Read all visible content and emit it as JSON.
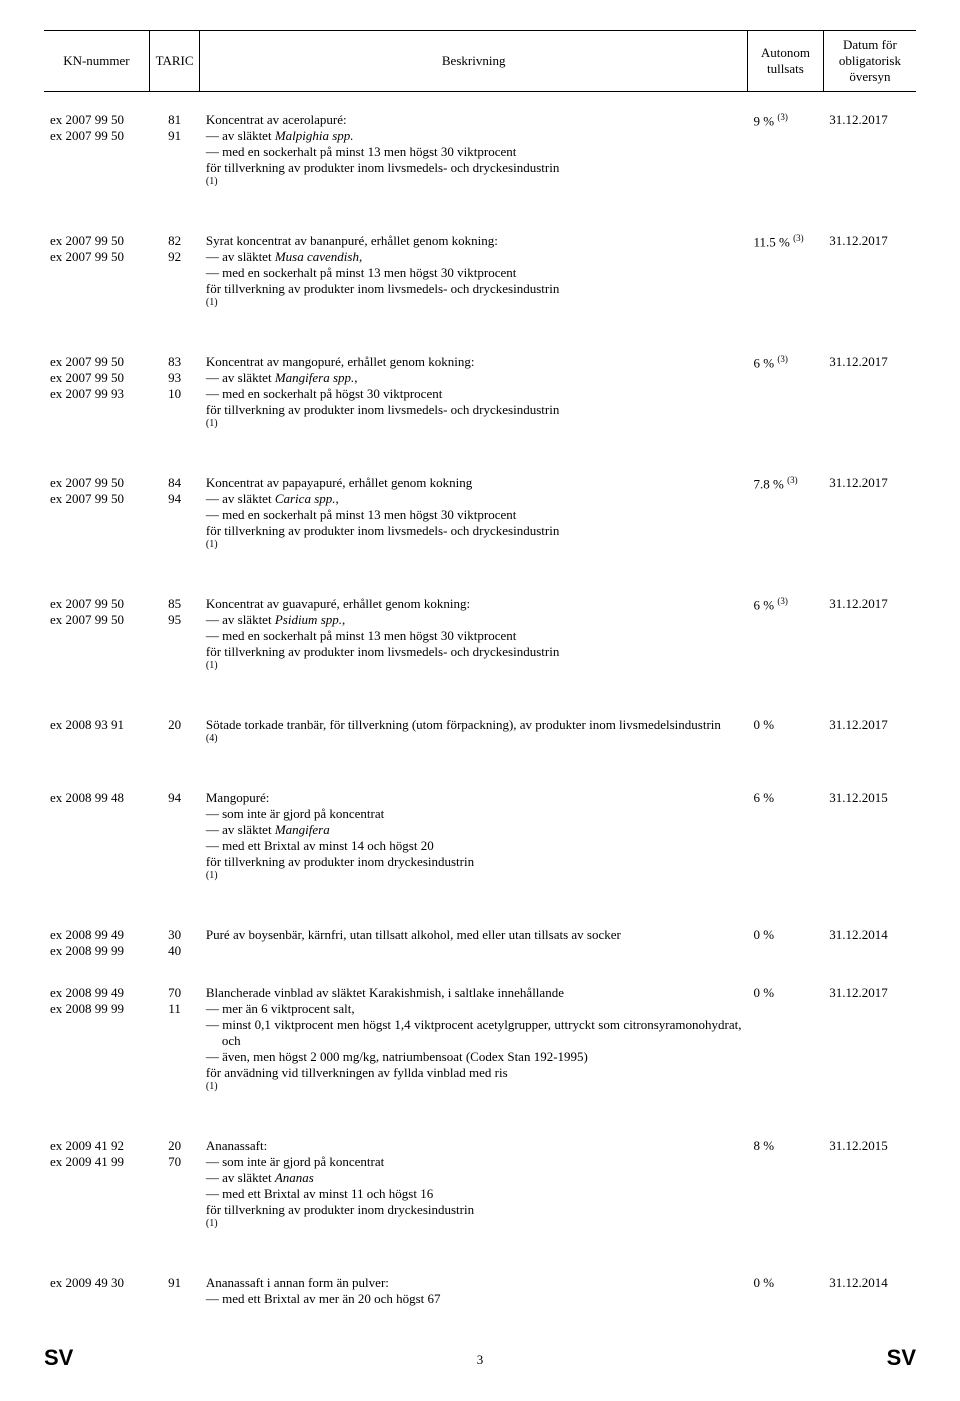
{
  "headers": {
    "kn": "KN-nummer",
    "taric": "TARIC",
    "desc": "Beskrivning",
    "rate": "Autonom tullsats",
    "date": "Datum för obligatorisk översyn"
  },
  "footer": {
    "left": "SV",
    "page": "3",
    "right": "SV"
  },
  "groups": [
    {
      "kn": [
        "ex 2007 99 50",
        "ex 2007 99 50"
      ],
      "taric": [
        "81",
        "91"
      ],
      "desc": {
        "lead": "Koncentrat av acerolapuré:",
        "dashes": [
          [
            "av släktet ",
            {
              "i": "Malpighia spp."
            }
          ],
          [
            "med en sockerhalt på minst 13 men högst 30 viktprocent"
          ]
        ],
        "tail": [
          "för tillverkning av produkter inom livsmedels- och dryckesindustrin"
        ],
        "note": "(1)"
      },
      "rate": "9 %",
      "rate_sup": "(3)",
      "date": "31.12.2017"
    },
    {
      "kn": [
        "ex 2007 99 50",
        "ex 2007 99 50"
      ],
      "taric": [
        "82",
        "92"
      ],
      "desc": {
        "lead": "Syrat koncentrat av bananpuré, erhållet genom kokning:",
        "dashes": [
          [
            "av släktet ",
            {
              "i": "Musa cavendish"
            },
            ","
          ],
          [
            "med en sockerhalt på minst 13 men högst 30 viktprocent"
          ]
        ],
        "tail": [
          "för tillverkning av produkter inom livsmedels- och dryckesindustrin"
        ],
        "note": "(1)"
      },
      "rate": "11.5 %",
      "rate_sup": "(3)",
      "date": "31.12.2017"
    },
    {
      "kn": [
        "ex 2007 99 50",
        "ex 2007 99 50",
        "ex 2007 99 93"
      ],
      "taric": [
        "83",
        "93",
        "10"
      ],
      "desc": {
        "lead": "Koncentrat av mangopuré, erhållet genom kokning:",
        "dashes": [
          [
            "av släktet ",
            {
              "i": "Mangifera spp."
            },
            ","
          ],
          [
            "med en sockerhalt på högst 30 viktprocent"
          ]
        ],
        "tail": [
          "för tillverkning av produkter inom livsmedels- och dryckesindustrin"
        ],
        "note": "(1)"
      },
      "rate": "6 %",
      "rate_sup": "(3)",
      "date": "31.12.2017"
    },
    {
      "kn": [
        "ex 2007 99 50",
        "ex 2007 99 50"
      ],
      "taric": [
        "84",
        "94"
      ],
      "desc": {
        "lead": "Koncentrat av papayapuré, erhållet genom kokning",
        "dashes": [
          [
            "av släktet ",
            {
              "i": "Carica spp."
            },
            ","
          ],
          [
            "med en sockerhalt på minst 13 men högst 30 viktprocent"
          ]
        ],
        "tail": [
          "för tillverkning av produkter inom livsmedels- och dryckesindustrin"
        ],
        "note": "(1)"
      },
      "rate": "7.8 %",
      "rate_sup": "(3)",
      "date": "31.12.2017"
    },
    {
      "kn": [
        "ex 2007 99 50",
        "ex 2007 99 50"
      ],
      "taric": [
        "85",
        "95"
      ],
      "desc": {
        "lead": "Koncentrat av guavapuré, erhållet genom kokning:",
        "dashes": [
          [
            "av släktet ",
            {
              "i": "Psidium spp."
            },
            ","
          ],
          [
            "med en sockerhalt på minst 13 men högst 30 viktprocent"
          ]
        ],
        "tail": [
          "för tillverkning av produkter inom livsmedels- och dryckesindustrin"
        ],
        "note": "(1)"
      },
      "rate": "6 %",
      "rate_sup": "(3)",
      "date": "31.12.2017"
    },
    {
      "kn": [
        "ex 2008 93 91"
      ],
      "taric": [
        "20"
      ],
      "desc": {
        "lead_justify": "Sötade torkade tranbär, för tillverkning (utom förpackning), av produkter inom livsmedelsindustrin",
        "note": "(4)"
      },
      "rate": "0 %",
      "date": "31.12.2017"
    },
    {
      "kn": [
        "ex 2008 99 48"
      ],
      "taric": [
        "94"
      ],
      "desc": {
        "lead": "Mangopuré:",
        "dashes": [
          [
            "som inte är gjord på koncentrat"
          ],
          [
            "av släktet ",
            {
              "i": "Mangifera"
            }
          ],
          [
            "med ett Brixtal av minst 14 och högst 20"
          ]
        ],
        "tail": [
          "för tillverkning av produkter inom dryckesindustrin"
        ],
        "note": "(1)"
      },
      "rate": "6 %",
      "date": "31.12.2015"
    },
    {
      "kn": [
        "ex 2008 99 49",
        "ex 2008 99 99"
      ],
      "taric": [
        "30",
        "40"
      ],
      "desc": {
        "lead": "Puré av boysenbär, kärnfri, utan tillsatt alkohol, med eller utan tillsats av socker"
      },
      "rate": "0 %",
      "date": "31.12.2014",
      "tight_after": true
    },
    {
      "kn": [
        "ex 2008 99 49",
        "ex 2008 99 99"
      ],
      "taric": [
        "70",
        "11"
      ],
      "desc": {
        "lead": "Blancherade vinblad av släktet Karakishmish, i saltlake innehållande",
        "dashes": [
          [
            "mer än 6 viktprocent salt,"
          ],
          [
            {
              "j": "minst 0,1 viktprocent men högst 1,4 viktprocent acetylgrupper, uttryckt som citronsyramonohydrat, och"
            }
          ],
          [
            "även, men högst 2 000 mg/kg, natriumbensoat (Codex Stan 192-1995)"
          ]
        ],
        "tail": [
          "för anvädning vid tillverkningen av fyllda vinblad med ris"
        ],
        "note": "(1)"
      },
      "rate": "0 %",
      "date": "31.12.2017"
    },
    {
      "kn": [
        "ex 2009 41 92",
        "ex 2009 41 99"
      ],
      "taric": [
        "20",
        "70"
      ],
      "desc": {
        "lead": "Ananassaft:",
        "dashes": [
          [
            "som inte är gjord på koncentrat"
          ],
          [
            "av släktet ",
            {
              "i": "Ananas"
            }
          ],
          [
            "med ett Brixtal av minst 11 och högst 16"
          ]
        ],
        "tail": [
          "för tillverkning av produkter inom dryckesindustrin"
        ],
        "note": "(1)"
      },
      "rate": "8 %",
      "date": "31.12.2015"
    },
    {
      "kn": [
        "ex 2009 49 30"
      ],
      "taric": [
        "91"
      ],
      "desc": {
        "lead": "Ananassaft i annan form än pulver:",
        "dashes": [
          [
            "med ett Brixtal av mer än 20 och högst 67"
          ]
        ]
      },
      "rate": "0 %",
      "date": "31.12.2014"
    }
  ]
}
